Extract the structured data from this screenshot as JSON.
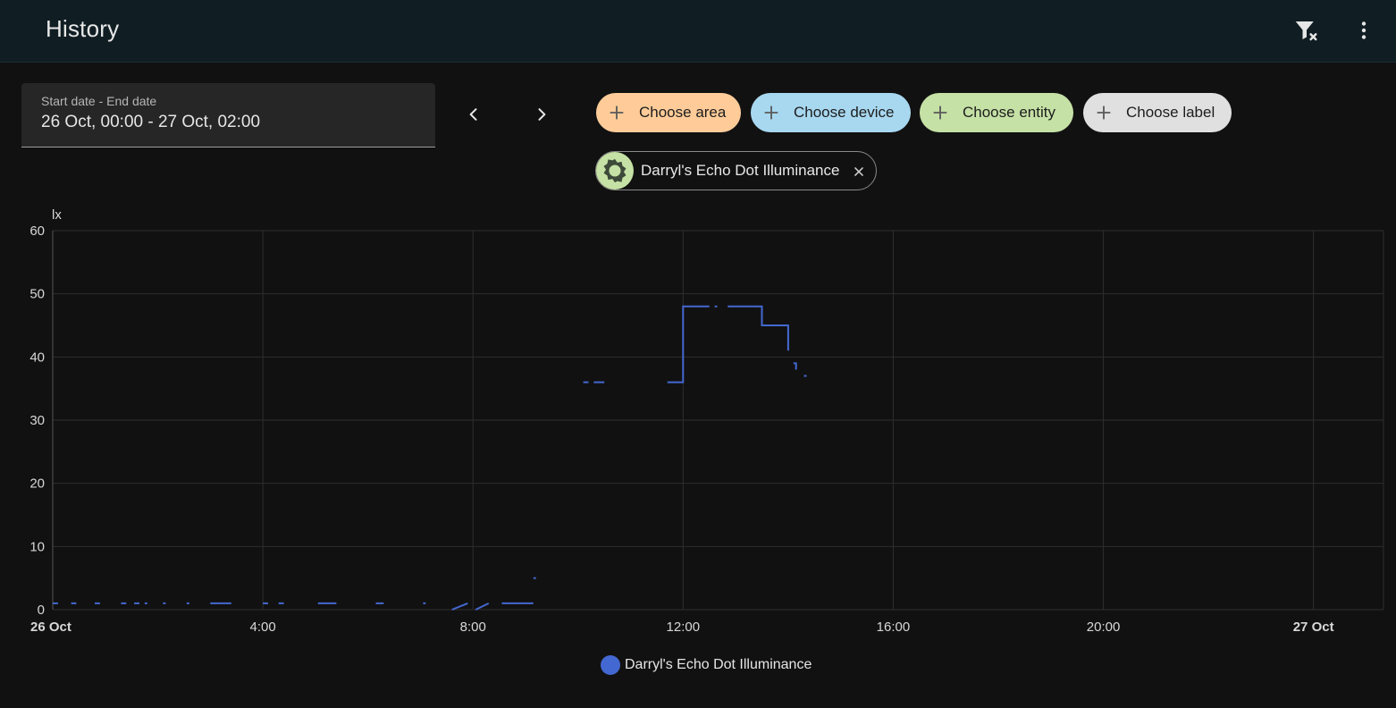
{
  "header": {
    "title": "History",
    "icons": {
      "clear_filter": "filter-remove-icon",
      "menu": "dots-vertical-icon"
    }
  },
  "date_picker": {
    "label": "Start date - End date",
    "value": "26 Oct, 00:00 - 27 Oct, 02:00"
  },
  "navigation": {
    "prev_icon": "chevron-left-icon",
    "next_icon": "chevron-right-icon"
  },
  "target_picker": {
    "chips": [
      {
        "label": "Choose area",
        "color": "#ffcc99"
      },
      {
        "label": "Choose device",
        "color": "#a8d8f0"
      },
      {
        "label": "Choose entity",
        "color": "#c5e1a5"
      },
      {
        "label": "Choose label",
        "color": "#e0e0e0"
      }
    ],
    "selected_entity": {
      "name": "Darryl's Echo Dot Illuminance",
      "icon": "brightness-icon"
    }
  },
  "chart_data": {
    "type": "line",
    "unit": "lx",
    "ylim": [
      0,
      60
    ],
    "y_ticks": [
      0,
      10,
      20,
      30,
      40,
      50,
      60
    ],
    "x_range_hours": [
      0,
      26
    ],
    "x_ticks": [
      {
        "hour": 0,
        "label": "26 Oct",
        "bold": true
      },
      {
        "hour": 4,
        "label": "4:00"
      },
      {
        "hour": 8,
        "label": "8:00"
      },
      {
        "hour": 12,
        "label": "12:00"
      },
      {
        "hour": 16,
        "label": "16:00"
      },
      {
        "hour": 20,
        "label": "20:00"
      },
      {
        "hour": 24,
        "label": "27 Oct",
        "bold": true
      }
    ],
    "grid": true,
    "series": [
      {
        "name": "Darryl's Echo Dot Illuminance",
        "color": "#4468d1",
        "segments": [
          [
            [
              0.0,
              1
            ],
            [
              0.1,
              1
            ]
          ],
          [
            [
              0.35,
              1
            ],
            [
              0.45,
              1
            ]
          ],
          [
            [
              0.8,
              1
            ],
            [
              0.9,
              1
            ]
          ],
          [
            [
              1.3,
              1
            ],
            [
              1.4,
              1
            ]
          ],
          [
            [
              1.55,
              1
            ],
            [
              1.65,
              1
            ]
          ],
          [
            [
              1.75,
              1
            ],
            [
              1.8,
              1
            ]
          ],
          [
            [
              2.1,
              1
            ],
            [
              2.15,
              1
            ]
          ],
          [
            [
              2.55,
              1
            ],
            [
              2.6,
              1
            ]
          ],
          [
            [
              3.0,
              1
            ],
            [
              3.4,
              1
            ]
          ],
          [
            [
              4.0,
              1
            ],
            [
              4.1,
              1
            ]
          ],
          [
            [
              4.3,
              1
            ],
            [
              4.4,
              1
            ]
          ],
          [
            [
              5.05,
              1
            ],
            [
              5.4,
              1
            ]
          ],
          [
            [
              6.15,
              1
            ],
            [
              6.3,
              1
            ]
          ],
          [
            [
              7.05,
              1
            ],
            [
              7.1,
              1
            ]
          ],
          [
            [
              7.6,
              0
            ],
            [
              7.9,
              1
            ]
          ],
          [
            [
              8.05,
              0
            ],
            [
              8.3,
              1
            ]
          ],
          [
            [
              8.55,
              1
            ],
            [
              9.15,
              1
            ]
          ],
          [
            [
              9.15,
              5
            ],
            [
              9.2,
              5
            ]
          ],
          [
            [
              10.1,
              36
            ],
            [
              10.2,
              36
            ]
          ],
          [
            [
              10.3,
              36
            ],
            [
              10.5,
              36
            ]
          ],
          [
            [
              11.7,
              36
            ],
            [
              12.0,
              36
            ],
            [
              12.0,
              48
            ],
            [
              12.5,
              48
            ]
          ],
          [
            [
              12.6,
              48
            ],
            [
              12.65,
              48
            ]
          ],
          [
            [
              12.85,
              48
            ],
            [
              13.5,
              48
            ],
            [
              13.5,
              45
            ],
            [
              14.0,
              45
            ],
            [
              14.0,
              41
            ]
          ],
          [
            [
              14.1,
              39
            ],
            [
              14.15,
              39
            ],
            [
              14.15,
              38
            ]
          ],
          [
            [
              14.3,
              37
            ],
            [
              14.35,
              37
            ]
          ]
        ]
      }
    ]
  },
  "legend": {
    "label": "Darryl's Echo Dot Illuminance"
  }
}
